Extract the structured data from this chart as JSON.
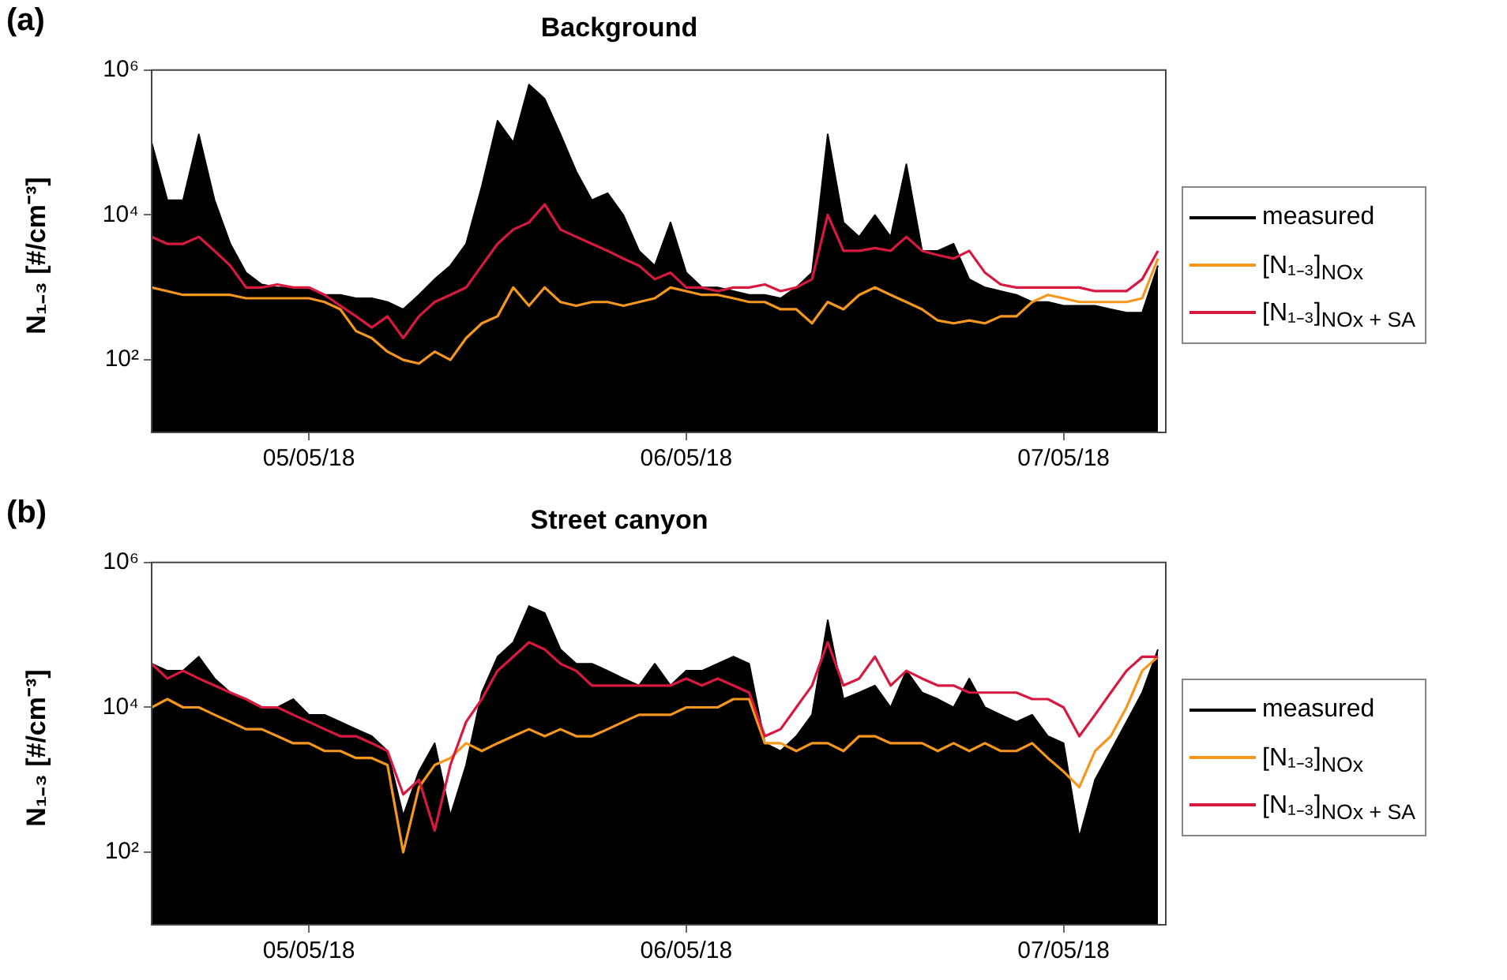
{
  "chart_data": [
    {
      "type": "line",
      "title": "Background",
      "ylabel": "N₁₋₃ [#/cm⁻³]",
      "annotations": [
        "(a)"
      ],
      "x": [
        "--05-04T14:00",
        "--05-04T15:00",
        "--05-04T16:00",
        "--05-04T17:00",
        "--05-04T18:00",
        "--05-04T19:00",
        "--05-04T20:00",
        "--05-04T21:00",
        "--05-04T22:00",
        "--05-04T23:00",
        "--05-05T00:00",
        "--05-05T01:00",
        "--05-05T02:00",
        "--05-05T03:00",
        "--05-05T04:00",
        "--05-05T05:00",
        "--05-05T06:00",
        "--05-05T07:00",
        "--05-05T08:00",
        "--05-05T09:00",
        "--05-05T10:00",
        "--05-05T11:00",
        "--05-05T12:00",
        "--05-05T13:00",
        "--05-05T14:00",
        "--05-05T15:00",
        "--05-05T16:00",
        "--05-05T17:00",
        "--05-05T18:00",
        "--05-05T19:00",
        "--05-05T20:00",
        "--05-05T21:00",
        "--05-05T22:00",
        "--05-05T23:00",
        "--05-06T00:00",
        "--05-06T01:00",
        "--05-06T02:00",
        "--05-06T03:00",
        "--05-06T04:00",
        "--05-06T05:00",
        "--05-06T06:00",
        "--05-06T07:00",
        "--05-06T08:00",
        "--05-06T09:00",
        "--05-06T10:00",
        "--05-06T11:00",
        "--05-06T12:00",
        "--05-06T13:00",
        "--05-06T14:00",
        "--05-06T15:00",
        "--05-06T16:00",
        "--05-06T17:00",
        "--05-06T18:00",
        "--05-06T19:00",
        "--05-06T20:00",
        "--05-06T21:00",
        "--05-06T22:00",
        "--05-06T23:00",
        "--05-07T00:00",
        "--05-07T01:00",
        "--05-07T02:00",
        "--05-07T03:00",
        "--05-07T04:00",
        "--05-07T05:00",
        "--05-07T06:00"
      ],
      "xlim": [
        "--05-04T14:00",
        "--05-07T06:30"
      ],
      "xticks": [
        {
          "value": "--05-05",
          "label": "05/05/18"
        },
        {
          "value": "--05-06",
          "label": "06/05/18"
        },
        {
          "value": "--05-07",
          "label": "07/05/18"
        }
      ],
      "ylim": [
        10,
        1000000
      ],
      "yticks": [
        {
          "value": 100,
          "label": "10²"
        },
        {
          "value": 10000,
          "label": "10⁴"
        },
        {
          "value": 1000000,
          "label": "10⁶"
        }
      ],
      "log": true,
      "grid": false,
      "legend": "right",
      "series": [
        {
          "name": "measured",
          "type": "area",
          "color": "#000000",
          "values": [
            100000.0,
            16000.0,
            16000.0,
            130000.0,
            16000.0,
            4000.0,
            1600.0,
            1100.0,
            1000.0,
            1000.0,
            1000.0,
            790.0,
            790.0,
            710.0,
            710.0,
            630.0,
            500.0,
            790.0,
            1300.0,
            2000.0,
            4000.0,
            25000.0,
            200000.0,
            100000.0,
            630000.0,
            400000.0,
            130000.0,
            40000.0,
            16000.0,
            20000.0,
            10000.0,
            3200.0,
            2000.0,
            7900.0,
            1600.0,
            1000.0,
            1000.0,
            890.0,
            790.0,
            790.0,
            710.0,
            1000.0,
            1600.0,
            130000.0,
            7900.0,
            5000.0,
            10000.0,
            5000.0,
            50000.0,
            3200.0,
            3200.0,
            4000.0,
            1300.0,
            1000.0,
            890.0,
            790.0,
            630.0,
            630.0,
            560.0,
            560.0,
            560.0,
            500.0,
            450.0,
            450.0,
            2000.0
          ]
        },
        {
          "name": "[N₁₋₃]$_{NOx}$",
          "type": "line",
          "color": "#f5961e",
          "values": [
            1000.0,
            890.0,
            790.0,
            790.0,
            790.0,
            790.0,
            710.0,
            710.0,
            710.0,
            710.0,
            710.0,
            630.0,
            500.0,
            250.0,
            200.0,
            130.0,
            100.0,
            89,
            130.0,
            100.0,
            200.0,
            320.0,
            400.0,
            1000.0,
            560.0,
            1000.0,
            630.0,
            560.0,
            630.0,
            630.0,
            560.0,
            630.0,
            710.0,
            1000.0,
            890.0,
            790.0,
            790.0,
            710.0,
            630.0,
            630.0,
            500.0,
            500.0,
            320.0,
            630.0,
            500.0,
            790.0,
            1000.0,
            790.0,
            630.0,
            500.0,
            350.0,
            320.0,
            350.0,
            320.0,
            400.0,
            400.0,
            630.0,
            790.0,
            710.0,
            630.0,
            630.0,
            630.0,
            630.0,
            710.0,
            2500.0
          ]
        },
        {
          "name": "[N₁₋₃]$_{NOx + SA}$",
          "type": "line",
          "color": "#d7193f",
          "values": [
            5000.0,
            4000.0,
            4000.0,
            5000.0,
            3200.0,
            2000.0,
            1000.0,
            1000.0,
            1100.0,
            1000.0,
            1000.0,
            790.0,
            560.0,
            400.0,
            280.0,
            400.0,
            200.0,
            400.0,
            630.0,
            790.0,
            1000.0,
            2000.0,
            4000.0,
            6300.0,
            7900.0,
            14000.0,
            6300.0,
            5000.0,
            4000.0,
            3200.0,
            2500.0,
            2000.0,
            1300.0,
            1600.0,
            1000.0,
            1000.0,
            890.0,
            1000.0,
            1000.0,
            1100.0,
            890.0,
            1000.0,
            1300.0,
            10000.0,
            3200.0,
            3200.0,
            3500.0,
            3200.0,
            5000.0,
            3200.0,
            2800.0,
            2500.0,
            3200.0,
            1600.0,
            1100.0,
            1000.0,
            1000.0,
            1000.0,
            1000.0,
            1000.0,
            890.0,
            890.0,
            890.0,
            1300.0,
            3200.0
          ]
        }
      ]
    },
    {
      "type": "line",
      "title": "Street canyon",
      "ylabel": "N₁₋₃ [#/cm⁻³]",
      "annotations": [
        "(b)"
      ],
      "x": [
        "--05-04T14:00",
        "--05-04T15:00",
        "--05-04T16:00",
        "--05-04T17:00",
        "--05-04T18:00",
        "--05-04T19:00",
        "--05-04T20:00",
        "--05-04T21:00",
        "--05-04T22:00",
        "--05-04T23:00",
        "--05-05T00:00",
        "--05-05T01:00",
        "--05-05T02:00",
        "--05-05T03:00",
        "--05-05T04:00",
        "--05-05T05:00",
        "--05-05T06:00",
        "--05-05T07:00",
        "--05-05T08:00",
        "--05-05T09:00",
        "--05-05T10:00",
        "--05-05T11:00",
        "--05-05T12:00",
        "--05-05T13:00",
        "--05-05T14:00",
        "--05-05T15:00",
        "--05-05T16:00",
        "--05-05T17:00",
        "--05-05T18:00",
        "--05-05T19:00",
        "--05-05T20:00",
        "--05-05T21:00",
        "--05-05T22:00",
        "--05-05T23:00",
        "--05-06T00:00",
        "--05-06T01:00",
        "--05-06T02:00",
        "--05-06T03:00",
        "--05-06T04:00",
        "--05-06T05:00",
        "--05-06T06:00",
        "--05-06T07:00",
        "--05-06T08:00",
        "--05-06T09:00",
        "--05-06T10:00",
        "--05-06T11:00",
        "--05-06T12:00",
        "--05-06T13:00",
        "--05-06T14:00",
        "--05-06T15:00",
        "--05-06T16:00",
        "--05-06T17:00",
        "--05-06T18:00",
        "--05-06T19:00",
        "--05-06T20:00",
        "--05-06T21:00",
        "--05-06T22:00",
        "--05-06T23:00",
        "--05-07T00:00",
        "--05-07T01:00",
        "--05-07T02:00",
        "--05-07T03:00",
        "--05-07T04:00",
        "--05-07T05:00",
        "--05-07T06:00"
      ],
      "xlim": [
        "--05-04T14:00",
        "--05-07T06:30"
      ],
      "xticks": [
        {
          "value": "--05-05",
          "label": "05/05/18"
        },
        {
          "value": "--05-06",
          "label": "06/05/18"
        },
        {
          "value": "--05-07",
          "label": "07/05/18"
        }
      ],
      "ylim": [
        10,
        1000000
      ],
      "yticks": [
        {
          "value": 100,
          "label": "10²"
        },
        {
          "value": 10000,
          "label": "10⁴"
        },
        {
          "value": 1000000,
          "label": "10⁶"
        }
      ],
      "log": true,
      "grid": false,
      "legend": "right",
      "series": [
        {
          "name": "measured",
          "type": "area",
          "color": "#000000",
          "values": [
            40000.0,
            32000.0,
            32000.0,
            50000.0,
            25000.0,
            16000.0,
            13000.0,
            10000.0,
            10000.0,
            13000.0,
            7900.0,
            7900.0,
            6300.0,
            5000.0,
            4000.0,
            2500.0,
            320.0,
            1300.0,
            3200.0,
            320.0,
            1600.0,
            16000.0,
            50000.0,
            79000.0,
            250000.0,
            200000.0,
            63000.0,
            40000.0,
            40000.0,
            32000.0,
            25000.0,
            20000.0,
            40000.0,
            20000.0,
            32000.0,
            32000.0,
            40000.0,
            50000.0,
            40000.0,
            3200.0,
            2500.0,
            4000.0,
            7900.0,
            160000.0,
            13000.0,
            16000.0,
            20000.0,
            10000.0,
            32000.0,
            16000.0,
            13000.0,
            10000.0,
            25000.0,
            10000.0,
            7900.0,
            6300.0,
            7900.0,
            4000.0,
            3200.0,
            160.0,
            1000.0,
            2500.0,
            6300.0,
            16000.0,
            63000.0
          ]
        },
        {
          "name": "[N₁₋₃]$_{NOx}$",
          "type": "line",
          "color": "#f5961e",
          "values": [
            10000.0,
            13000.0,
            10000.0,
            10000.0,
            7900.0,
            6300.0,
            5000.0,
            5000.0,
            4000.0,
            3200.0,
            3200.0,
            2500.0,
            2500.0,
            2000.0,
            2000.0,
            1600.0,
            100.0,
            790.0,
            1600.0,
            2000.0,
            3200.0,
            2500.0,
            3200.0,
            4000.0,
            5000.0,
            4000.0,
            5000.0,
            4000.0,
            4000.0,
            5000.0,
            6300.0,
            7900.0,
            7900.0,
            7900.0,
            10000.0,
            10000.0,
            10000.0,
            13000.0,
            13000.0,
            3200.0,
            3200.0,
            2500.0,
            3200.0,
            3200.0,
            2500.0,
            4000.0,
            4000.0,
            3200.0,
            3200.0,
            3200.0,
            2500.0,
            3200.0,
            2500.0,
            3200.0,
            2500.0,
            2500.0,
            3200.0,
            2000.0,
            1300.0,
            790.0,
            2500.0,
            4000.0,
            10000.0,
            32000.0,
            50000.0
          ]
        },
        {
          "name": "[N₁₋₃]$_{NOx + SA}$",
          "type": "line",
          "color": "#d7193f",
          "values": [
            40000.0,
            25000.0,
            32000.0,
            25000.0,
            20000.0,
            16000.0,
            13000.0,
            10000.0,
            10000.0,
            7900.0,
            6300.0,
            5000.0,
            4000.0,
            4000.0,
            3200.0,
            2500.0,
            630.0,
            1000.0,
            200.0,
            1600.0,
            6300.0,
            13000.0,
            32000.0,
            50000.0,
            79000.0,
            63000.0,
            40000.0,
            32000.0,
            20000.0,
            20000.0,
            20000.0,
            20000.0,
            20000.0,
            20000.0,
            25000.0,
            20000.0,
            25000.0,
            20000.0,
            16000.0,
            4000.0,
            5000.0,
            10000.0,
            20000.0,
            79000.0,
            20000.0,
            25000.0,
            50000.0,
            20000.0,
            32000.0,
            25000.0,
            20000.0,
            20000.0,
            16000.0,
            16000.0,
            16000.0,
            16000.0,
            13000.0,
            13000.0,
            10000.0,
            4000.0,
            7900.0,
            16000.0,
            32000.0,
            50000.0,
            50000.0
          ]
        }
      ]
    }
  ]
}
